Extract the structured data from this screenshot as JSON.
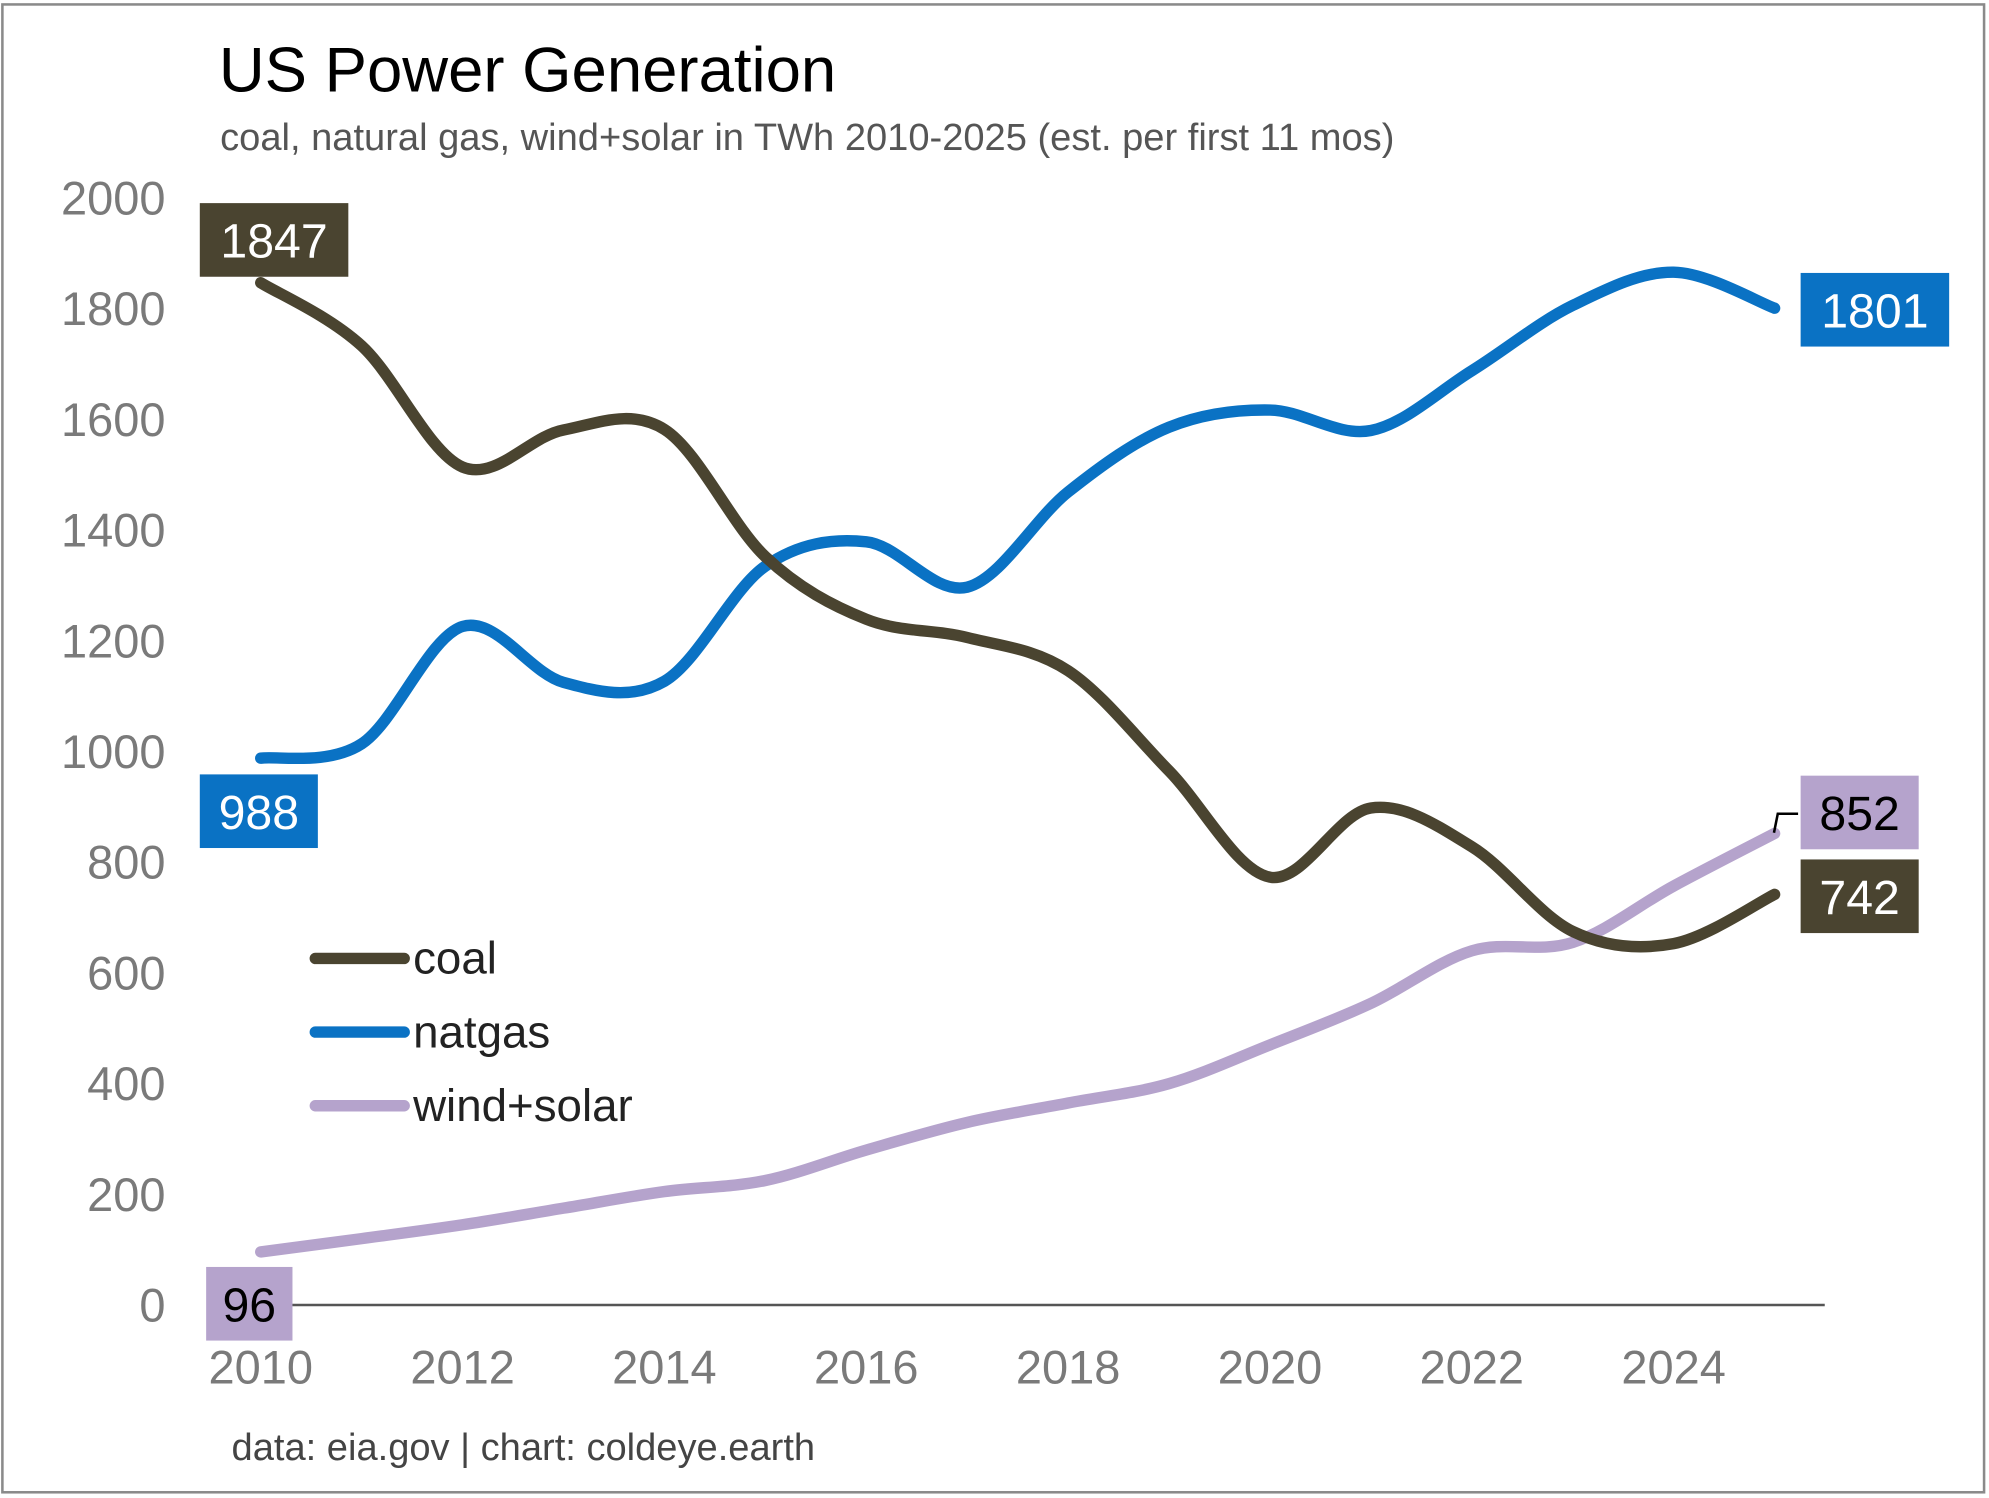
{
  "chart_data": {
    "type": "line",
    "title": "US Power Generation",
    "subtitle": "coal, natural gas, wind+solar in TWh 2010-2025 (est. per first 11 mos)",
    "source": "data: eia.gov | chart: coldeye.earth",
    "xlabel": "",
    "ylabel": "",
    "x": [
      2010,
      2011,
      2012,
      2013,
      2014,
      2015,
      2016,
      2017,
      2018,
      2019,
      2020,
      2021,
      2022,
      2023,
      2024,
      2025
    ],
    "xlim": [
      2010,
      2025.5
    ],
    "ylim": [
      0,
      2000
    ],
    "xticks": [
      2010,
      2012,
      2014,
      2016,
      2018,
      2020,
      2022,
      2024
    ],
    "yticks": [
      0,
      200,
      400,
      600,
      800,
      1000,
      1200,
      1400,
      1600,
      1800,
      2000
    ],
    "grid": false,
    "legend_position": "lower-left",
    "series": [
      {
        "name": "coal",
        "color": "#4a4430",
        "label_text_color": "#ffffff",
        "values": [
          1847,
          1733,
          1514,
          1581,
          1582,
          1352,
          1239,
          1206,
          1146,
          965,
          773,
          898,
          828,
          675,
          653,
          742
        ]
      },
      {
        "name": "natgas",
        "color": "#0a72c4",
        "label_text_color": "#ffffff",
        "values": [
          988,
          1014,
          1226,
          1125,
          1127,
          1335,
          1379,
          1297,
          1469,
          1586,
          1617,
          1580,
          1688,
          1806,
          1866,
          1801
        ]
      },
      {
        "name": "wind+solar",
        "color": "#b5a3cc",
        "label_text_color": "#000000",
        "values": [
          96,
          120,
          145,
          175,
          205,
          225,
          280,
          330,
          365,
          400,
          470,
          545,
          640,
          655,
          757,
          852
        ]
      }
    ]
  }
}
